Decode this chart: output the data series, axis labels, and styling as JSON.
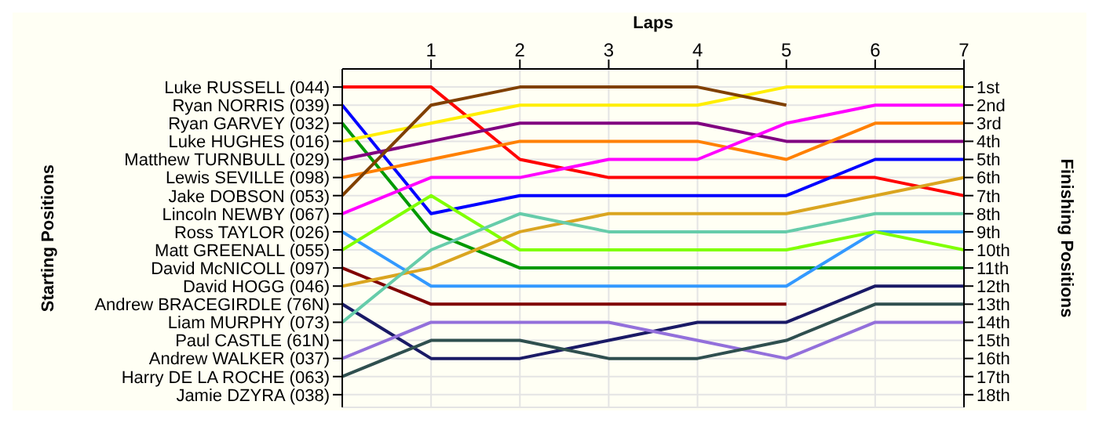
{
  "chart_data": {
    "type": "line",
    "xlabel": "Laps",
    "ylabel": "Finishing Positions",
    "x": [
      0,
      1,
      2,
      3,
      4,
      5,
      6,
      7
    ],
    "xlim": [
      0,
      7
    ],
    "xticks": [
      1,
      2,
      3,
      4,
      5,
      6,
      7
    ],
    "ylim": [
      18.7,
      0
    ],
    "yticks": [
      {
        "value": 1,
        "label": "1st"
      },
      {
        "value": 2,
        "label": "2nd"
      },
      {
        "value": 3,
        "label": "3rd"
      },
      {
        "value": 4,
        "label": "4th"
      },
      {
        "value": 5,
        "label": "5th"
      },
      {
        "value": 6,
        "label": "6th"
      },
      {
        "value": 7,
        "label": "7th"
      },
      {
        "value": 8,
        "label": "8th"
      },
      {
        "value": 9,
        "label": "9th"
      },
      {
        "value": 10,
        "label": "10th"
      },
      {
        "value": 11,
        "label": "11th"
      },
      {
        "value": 12,
        "label": "12th"
      },
      {
        "value": 13,
        "label": "13th"
      },
      {
        "value": 14,
        "label": "14th"
      },
      {
        "value": 15,
        "label": "15th"
      },
      {
        "value": 16,
        "label": "16th"
      },
      {
        "value": 17,
        "label": "17th"
      },
      {
        "value": 18,
        "label": "18th"
      }
    ],
    "annotations": [
      "Starting Positions",
      "Luke RUSSELL (044)",
      "Ryan NORRIS (039)",
      "Ryan GARVEY (032)",
      "Luke HUGHES (016)",
      "Matthew TURNBULL (029)",
      "Lewis SEVILLE (098)",
      "Jake DOBSON (053)",
      "Lincoln NEWBY (067)",
      "Ross TAYLOR (026)",
      "Matt GREENALL (055)",
      "David McNICOLL (097)",
      "David HOGG (046)",
      "Andrew BRACEGIRDLE (76N)",
      "Liam MURPHY (073)",
      "Paul CASTLE (61N)",
      "Andrew WALKER (037)",
      "Harry DE LA ROCHE (063)",
      "Jamie DZYRA (038)"
    ],
    "grid": true,
    "marker": "none",
    "line_style": "solid",
    "series": [
      {
        "color": "#ff0000",
        "values": [
          1,
          1,
          5,
          6,
          6,
          6,
          6,
          7
        ]
      },
      {
        "color": "#0000ff",
        "values": [
          2,
          8,
          7,
          7,
          7,
          7,
          5,
          5
        ]
      },
      {
        "color": "#009900",
        "values": [
          3,
          9,
          11,
          11,
          11,
          11,
          11,
          11
        ]
      },
      {
        "color": "#ffee00",
        "values": [
          4,
          3,
          2,
          2,
          2,
          1,
          1,
          1
        ]
      },
      {
        "color": "#800080",
        "values": [
          5,
          4,
          3,
          3,
          3,
          4,
          4,
          4
        ]
      },
      {
        "color": "#ff8000",
        "values": [
          6,
          5,
          4,
          4,
          4,
          5,
          3,
          3
        ]
      },
      {
        "color": "#804000",
        "values": [
          7,
          2,
          1,
          1,
          1,
          2,
          null,
          null
        ]
      },
      {
        "color": "#ff00ff",
        "values": [
          8,
          6,
          6,
          5,
          5,
          3,
          2,
          2
        ]
      },
      {
        "color": "#3399ff",
        "values": [
          9,
          12,
          12,
          12,
          12,
          12,
          9,
          9
        ]
      },
      {
        "color": "#80ff00",
        "values": [
          10,
          7,
          10,
          10,
          10,
          10,
          9,
          10
        ]
      },
      {
        "color": "#800000",
        "values": [
          11,
          13,
          13,
          13,
          13,
          13,
          null,
          null
        ]
      },
      {
        "color": "#daa520",
        "values": [
          12,
          11,
          9,
          8,
          8,
          8,
          7,
          6
        ]
      },
      {
        "color": "#1a1a66",
        "values": [
          13,
          16,
          16,
          15,
          14,
          14,
          12,
          12
        ]
      },
      {
        "color": "#66ccaa",
        "values": [
          14,
          10,
          8,
          9,
          9,
          9,
          8,
          8
        ]
      },
      {
        "color": "#9370db",
        "values": [
          16,
          14,
          14,
          14,
          15,
          16,
          14,
          14
        ]
      },
      {
        "color": "#2f4f4f",
        "values": [
          17,
          15,
          15,
          16,
          16,
          15,
          13,
          13
        ]
      }
    ]
  }
}
